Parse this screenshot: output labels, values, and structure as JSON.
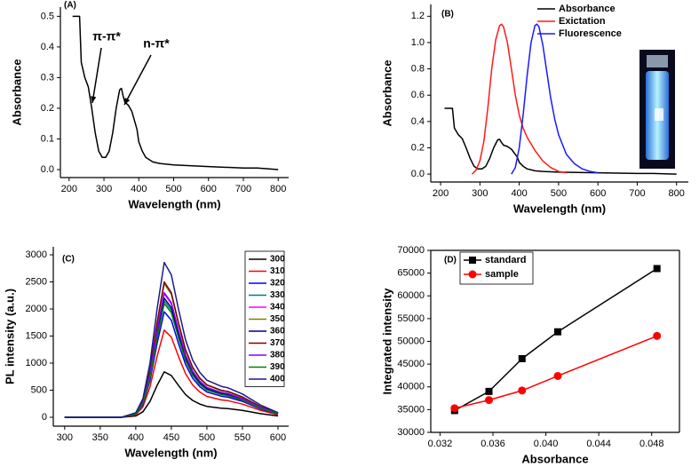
{
  "chart_data": [
    {
      "type": "line",
      "title": "(A)",
      "x_label": "Wavelength (nm)",
      "y_label": "Absorbance",
      "x": [
        210,
        230,
        235,
        245,
        255,
        265,
        275,
        285,
        295,
        305,
        315,
        325,
        335,
        345,
        350,
        355,
        360,
        370,
        380,
        390,
        395,
        400,
        410,
        420,
        440,
        460,
        500,
        600,
        700,
        740,
        800
      ],
      "values": [
        0.5,
        0.5,
        0.35,
        0.3,
        0.27,
        0.2,
        0.12,
        0.06,
        0.04,
        0.04,
        0.06,
        0.12,
        0.2,
        0.26,
        0.265,
        0.24,
        0.22,
        0.21,
        0.19,
        0.15,
        0.13,
        0.09,
        0.06,
        0.04,
        0.025,
        0.02,
        0.015,
        0.01,
        0.005,
        0.005,
        0
      ],
      "color": "#000000",
      "xlim": [
        175,
        830
      ],
      "xticks": [
        200,
        300,
        400,
        500,
        600,
        700,
        800
      ],
      "ylim": [
        -0.026,
        0.53
      ],
      "yticks": [
        {
          "value": 0,
          "label": "0.0"
        },
        0.1,
        0.2,
        0.3,
        0.4,
        0.5
      ],
      "annotations": [
        "π-π*",
        "n-π*"
      ]
    },
    {
      "type": "line",
      "title": "(B)",
      "x_label": "Wavelength (nm)",
      "y_label": "Absorbance",
      "series": [
        {
          "name": "Absorbance",
          "color": "#000000",
          "x": [
            210,
            230,
            235,
            245,
            255,
            265,
            275,
            285,
            295,
            305,
            315,
            325,
            335,
            345,
            350,
            355,
            360,
            370,
            380,
            390,
            395,
            400,
            410,
            420,
            440,
            460,
            500,
            600,
            700,
            740,
            800
          ],
          "values": [
            0.5,
            0.5,
            0.35,
            0.3,
            0.27,
            0.2,
            0.12,
            0.06,
            0.04,
            0.04,
            0.06,
            0.12,
            0.2,
            0.26,
            0.265,
            0.24,
            0.22,
            0.21,
            0.19,
            0.15,
            0.13,
            0.09,
            0.06,
            0.04,
            0.025,
            0.02,
            0.015,
            0.01,
            0.005,
            0.005,
            0
          ]
        },
        {
          "name": "Exictation",
          "color": "#ff1a1a",
          "x": [
            280,
            290,
            300,
            310,
            320,
            330,
            340,
            350,
            355,
            360,
            370,
            380,
            390,
            400,
            410,
            420,
            440,
            460,
            480,
            500,
            520
          ],
          "values": [
            0,
            0.03,
            0.1,
            0.25,
            0.5,
            0.8,
            1.02,
            1.13,
            1.14,
            1.12,
            1.0,
            0.8,
            0.6,
            0.45,
            0.35,
            0.28,
            0.18,
            0.1,
            0.05,
            0.02,
            0.01
          ]
        },
        {
          "name": "Fluorescence",
          "color": "#1a1aff",
          "x": [
            380,
            390,
            400,
            410,
            420,
            430,
            440,
            445,
            450,
            460,
            470,
            480,
            490,
            500,
            520,
            540,
            560,
            580,
            600
          ],
          "values": [
            0,
            0.05,
            0.2,
            0.45,
            0.75,
            1.0,
            1.13,
            1.14,
            1.12,
            0.98,
            0.78,
            0.58,
            0.42,
            0.3,
            0.15,
            0.08,
            0.04,
            0.02,
            0.01
          ]
        }
      ],
      "legend": "top-right",
      "xlim": [
        175,
        830
      ],
      "xticks": [
        200,
        300,
        400,
        500,
        600,
        700,
        800
      ],
      "ylim": [
        -0.06,
        1.29
      ],
      "yticks": [
        {
          "value": 0,
          "label": "0.0"
        },
        0.2,
        0.4,
        0.6,
        0.8,
        {
          "value": 1,
          "label": "1.0"
        },
        1.2
      ]
    },
    {
      "type": "line",
      "title": "(C)",
      "x_label": "Wavelength (nm)",
      "y_label": "PL intensity (a.u.)",
      "x": [
        300,
        380,
        400,
        410,
        420,
        430,
        440,
        450,
        460,
        470,
        480,
        490,
        500,
        520,
        530,
        550,
        575,
        600
      ],
      "series": [
        {
          "name": "300",
          "color": "#000000",
          "values": [
            0,
            0,
            25,
            101,
            294,
            588,
            840,
            773,
            588,
            420,
            311,
            244,
            202,
            168,
            160,
            126,
            67,
            25
          ]
        },
        {
          "name": "310",
          "color": "#ff0000",
          "values": [
            0,
            0,
            48,
            193,
            564,
            1127,
            1610,
            1481,
            1127,
            805,
            596,
            467,
            386,
            322,
            306,
            242,
            129,
            48
          ]
        },
        {
          "name": "320",
          "color": "#0000ff",
          "values": [
            0,
            0,
            59,
            234,
            683,
            1365,
            1950,
            1794,
            1365,
            975,
            722,
            566,
            468,
            390,
            371,
            293,
            156,
            59
          ]
        },
        {
          "name": "330",
          "color": "#008080",
          "values": [
            0,
            0,
            65,
            258,
            753,
            1505,
            2150,
            1978,
            1505,
            1075,
            796,
            624,
            516,
            430,
            409,
            323,
            172,
            65
          ]
        },
        {
          "name": "340",
          "color": "#ff00ff",
          "values": [
            0,
            0,
            68,
            274,
            798,
            1596,
            2280,
            2098,
            1596,
            1140,
            844,
            661,
            547,
            456,
            433,
            342,
            182,
            68
          ]
        },
        {
          "name": "350",
          "color": "#808000",
          "values": [
            0,
            0,
            74,
            296,
            865,
            1729,
            2470,
            2272,
            1729,
            1235,
            914,
            716,
            593,
            494,
            469,
            371,
            198,
            74
          ]
        },
        {
          "name": "360",
          "color": "#000080",
          "values": [
            0,
            0,
            66,
            264,
            770,
            1540,
            2200,
            2024,
            1540,
            1100,
            814,
            638,
            528,
            440,
            418,
            330,
            176,
            66
          ]
        },
        {
          "name": "370",
          "color": "#800000",
          "values": [
            0,
            0,
            75,
            300,
            875,
            1750,
            2500,
            2300,
            1750,
            1250,
            925,
            725,
            600,
            500,
            475,
            375,
            200,
            75
          ]
        },
        {
          "name": "380",
          "color": "#8000ff",
          "values": [
            0,
            0,
            69,
            276,
            805,
            1610,
            2300,
            2116,
            1610,
            1150,
            851,
            667,
            552,
            460,
            437,
            345,
            184,
            69
          ]
        },
        {
          "name": "390",
          "color": "#008000",
          "values": [
            0,
            0,
            63,
            252,
            735,
            1470,
            2100,
            1932,
            1470,
            1050,
            777,
            609,
            504,
            420,
            399,
            315,
            168,
            63
          ]
        },
        {
          "name": "400",
          "color": "#1a1a8c",
          "values": [
            0,
            0,
            86,
            343,
            1001,
            2002,
            2860,
            2631,
            2002,
            1430,
            1058,
            829,
            686,
            572,
            543,
            429,
            229,
            86
          ]
        }
      ],
      "legend": "top-right",
      "xlim": [
        284,
        615
      ],
      "xticks": [
        300,
        350,
        400,
        450,
        500,
        550,
        600
      ],
      "ylim": [
        -164,
        3148
      ],
      "yticks": [
        0,
        500,
        1000,
        1500,
        2000,
        2500,
        3000
      ]
    },
    {
      "type": "line",
      "title": "(D)",
      "x_label": "Absorbance",
      "y_label": "Integrated intensity",
      "x": [
        0.0331,
        0.0357,
        0.0382,
        0.0409,
        0.0484
      ],
      "series": [
        {
          "name": "standard",
          "color": "#000000",
          "marker": "square",
          "values": [
            34800,
            39000,
            46200,
            52100,
            66000
          ]
        },
        {
          "name": "sample",
          "color": "#ff0000",
          "marker": "circle",
          "values": [
            35300,
            37100,
            39200,
            42400,
            51200
          ]
        }
      ],
      "legend": "top-left",
      "frame": true,
      "xlim": [
        0.0313,
        0.0501
      ],
      "xticks": [
        0.032,
        0.036,
        {
          "value": 0.04,
          "label": "0.040"
        },
        0.044,
        0.048
      ],
      "ylim": [
        30000,
        70000
      ],
      "yticks": [
        30000,
        35000,
        40000,
        45000,
        50000,
        55000,
        60000,
        65000,
        70000
      ]
    }
  ]
}
